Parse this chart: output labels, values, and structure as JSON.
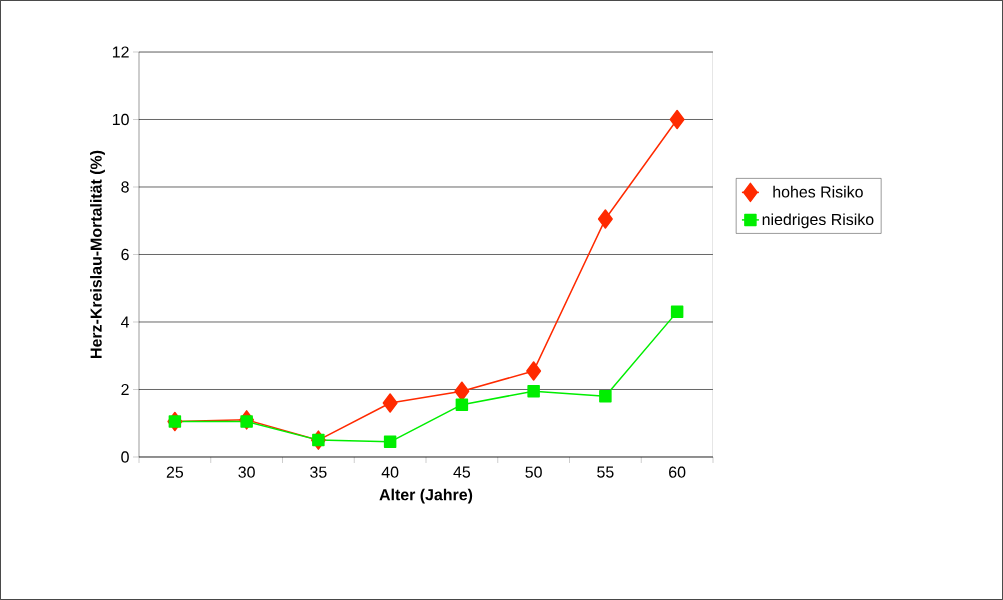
{
  "chart_data": {
    "type": "line",
    "xlabel": "Alter (Jahre)",
    "ylabel": "Herz-Kreislau-Mortalität (%)",
    "categories": [
      "25",
      "30",
      "35",
      "40",
      "45",
      "50",
      "55",
      "60"
    ],
    "series": [
      {
        "name": "hohes Risiko",
        "color": "#ff2a00",
        "marker": "diamond",
        "values": [
          1.05,
          1.1,
          0.5,
          1.6,
          1.95,
          2.55,
          7.05,
          10.0
        ]
      },
      {
        "name": "niedriges Risiko",
        "color": "#00ee00",
        "marker": "square",
        "values": [
          1.05,
          1.05,
          0.5,
          0.45,
          1.55,
          1.95,
          1.8,
          4.3
        ]
      }
    ],
    "ylim": [
      0,
      12
    ],
    "yticks": [
      0,
      2,
      4,
      6,
      8,
      10,
      12
    ],
    "grid": "y",
    "legend": "right"
  }
}
